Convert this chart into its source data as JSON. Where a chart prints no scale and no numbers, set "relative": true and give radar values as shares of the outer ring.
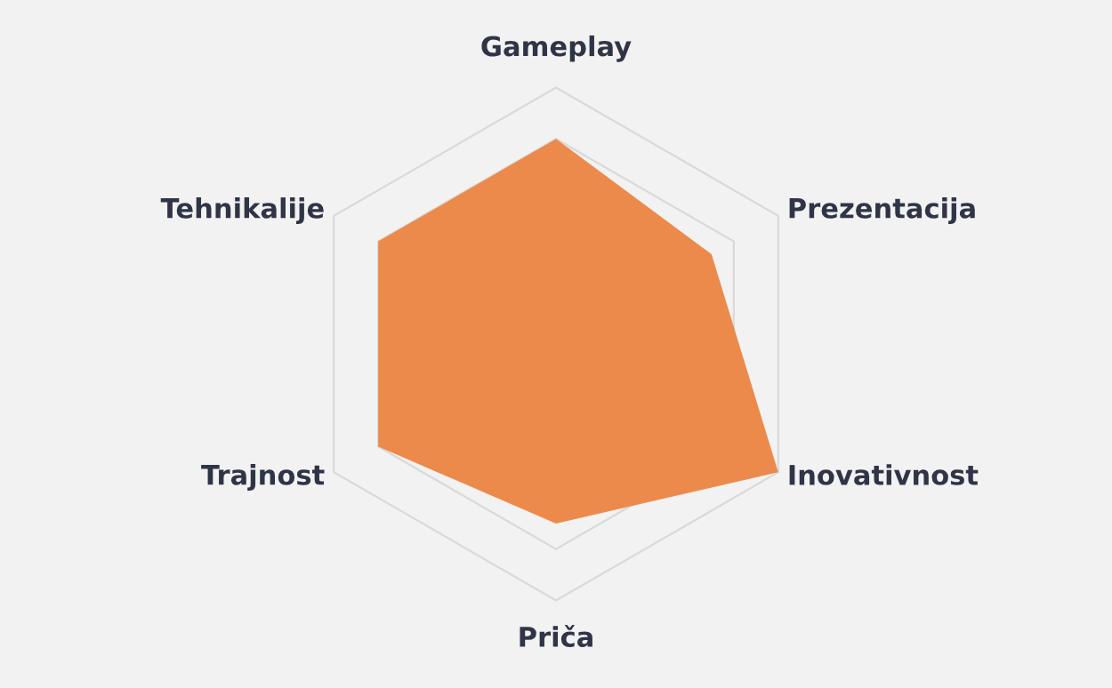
{
  "chart_data": {
    "type": "radar",
    "relative": true,
    "grid": true,
    "categories": [
      "Gameplay",
      "Prezentacija",
      "Inovativnost",
      "Priča",
      "Trajnost",
      "Tehnikalije"
    ],
    "series": [
      {
        "color": "#ec8a4c",
        "values": [
          0.8,
          0.7,
          1.0,
          0.7,
          0.8,
          0.8
        ]
      }
    ]
  }
}
